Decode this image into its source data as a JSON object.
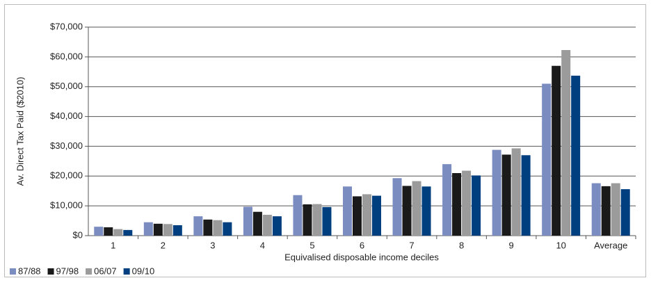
{
  "chart_data": {
    "type": "bar",
    "y_label": "Av. Direct Tax Paid ($2010)",
    "x_label": "Equivalised disposable income deciles",
    "categories": [
      "1",
      "2",
      "3",
      "4",
      "5",
      "6",
      "7",
      "8",
      "9",
      "10",
      "Average"
    ],
    "series": [
      {
        "name": "87/88",
        "color": "#7b8cc0",
        "values": [
          3000,
          4500,
          6500,
          9700,
          13600,
          16500,
          19300,
          24000,
          28800,
          51000,
          17600
        ]
      },
      {
        "name": "97/98",
        "color": "#1a1a1a",
        "values": [
          2800,
          4000,
          5400,
          8000,
          10500,
          13200,
          16700,
          21000,
          27200,
          57000,
          16600
        ]
      },
      {
        "name": "06/07",
        "color": "#9b9b9b",
        "values": [
          2200,
          3900,
          5200,
          7000,
          10600,
          13900,
          18300,
          21800,
          29300,
          62300,
          17600
        ]
      },
      {
        "name": "09/10",
        "color": "#003f7f",
        "values": [
          1900,
          3500,
          4500,
          6500,
          9600,
          13400,
          16500,
          20200,
          27000,
          53700,
          15600
        ]
      }
    ],
    "ylim": [
      0,
      70000
    ],
    "yticks": [
      {
        "value": 0,
        "label": "$0"
      },
      {
        "value": 10000,
        "label": "$10,000"
      },
      {
        "value": 20000,
        "label": "$20,000"
      },
      {
        "value": 30000,
        "label": "$30,000"
      },
      {
        "value": 40000,
        "label": "$40,000"
      },
      {
        "value": 50000,
        "label": "$50,000"
      },
      {
        "value": 60000,
        "label": "$60,000"
      },
      {
        "value": 70000,
        "label": "$70,000"
      }
    ],
    "grid": true,
    "legend": "bottom-left"
  }
}
